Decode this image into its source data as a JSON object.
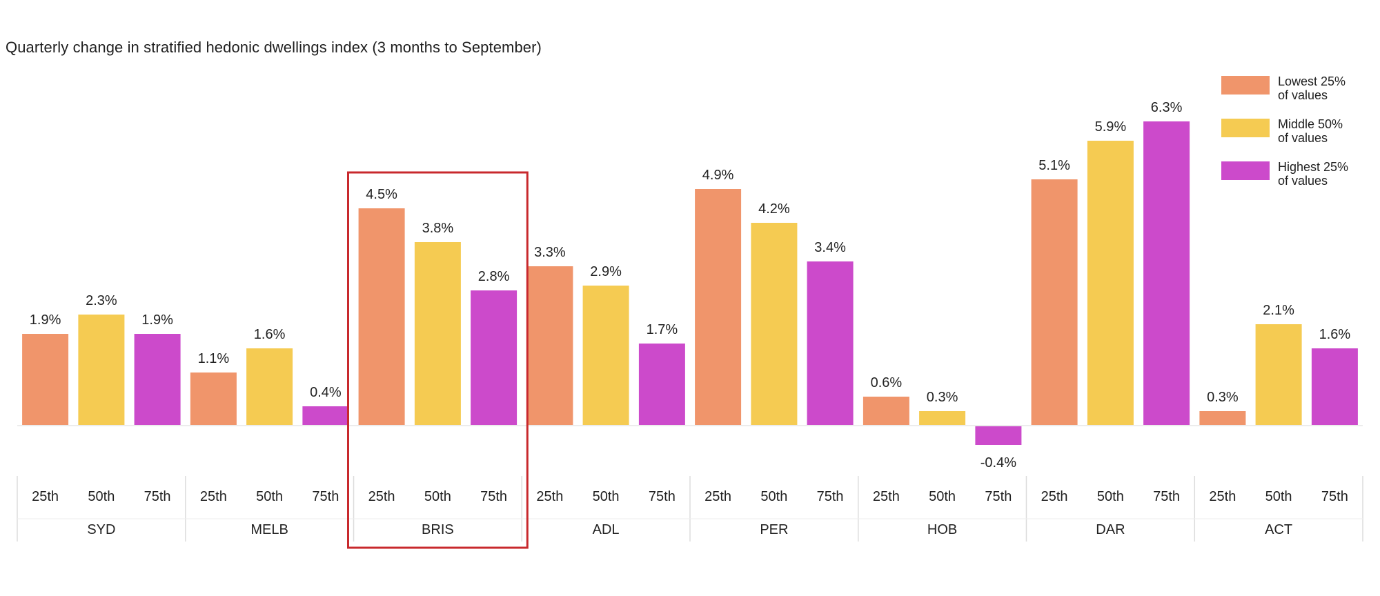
{
  "chart_data": {
    "type": "bar",
    "title": "Quarterly change in stratified hedonic dwellings index (3 months to September)",
    "xlabel": "",
    "ylabel": "",
    "ylim": [
      -0.6,
      6.8
    ],
    "grid": false,
    "legend_position": "top-right",
    "groups": [
      "SYD",
      "MELB",
      "BRIS",
      "ADL",
      "PER",
      "HOB",
      "DAR",
      "ACT"
    ],
    "subcategories": [
      "25th",
      "50th",
      "75th"
    ],
    "series": [
      {
        "name": "Lowest 25% of values",
        "color": "#F0956B",
        "values": [
          1.9,
          1.1,
          4.5,
          3.3,
          4.9,
          0.6,
          5.1,
          0.3
        ]
      },
      {
        "name": "Middle 50% of values",
        "color": "#F5CB52",
        "values": [
          2.3,
          1.6,
          3.8,
          2.9,
          4.2,
          0.3,
          5.9,
          2.1
        ]
      },
      {
        "name": "Highest 25% of values",
        "color": "#CC4ACB",
        "values": [
          1.9,
          0.4,
          2.8,
          1.7,
          3.4,
          -0.4,
          6.3,
          1.6
        ]
      }
    ],
    "data_labels": [
      [
        "1.9%",
        "1.1%",
        "4.5%",
        "3.3%",
        "4.9%",
        "0.6%",
        "5.1%",
        "0.3%"
      ],
      [
        "2.3%",
        "1.6%",
        "3.8%",
        "2.9%",
        "4.2%",
        "0.3%",
        "5.9%",
        "2.1%"
      ],
      [
        "1.9%",
        "0.4%",
        "2.8%",
        "1.7%",
        "3.4%",
        "-0.4%",
        "6.3%",
        "1.6%"
      ]
    ],
    "legend": [
      {
        "label": "Lowest 25%\nof values",
        "color": "#F0956B"
      },
      {
        "label": "Middle 50%\nof values",
        "color": "#F5CB52"
      },
      {
        "label": "Highest 25%\nof values",
        "color": "#CC4ACB"
      }
    ],
    "highlight": {
      "group": "BRIS",
      "color": "#C8292D"
    }
  }
}
